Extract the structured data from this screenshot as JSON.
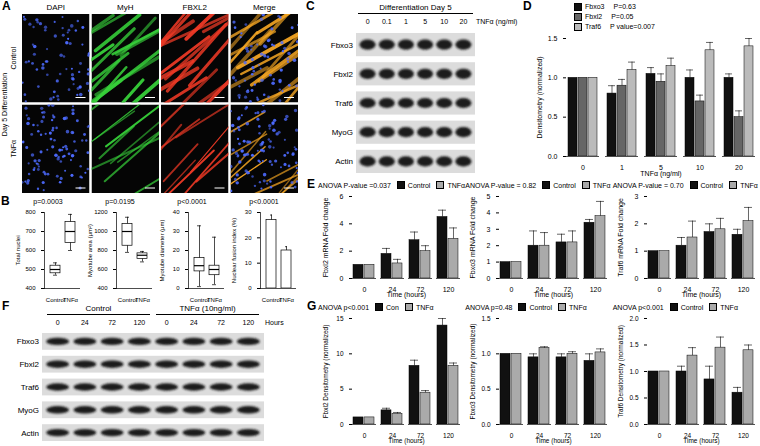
{
  "figure": {
    "microscopy": {
      "panel": "A",
      "columns": [
        {
          "name": "DAPI",
          "color": "#4d6bff"
        },
        {
          "name": "MyH",
          "color": "#37d13a"
        },
        {
          "name": "FBXL2",
          "color": "#f03a26"
        },
        {
          "name": "Merge",
          "color": "#f5a623"
        }
      ],
      "rows": [
        "Control",
        "TNFα"
      ],
      "row_group": "Day 5 Differentiation"
    },
    "blot_dose": {
      "panel": "C",
      "header": "Differentiation Day 5",
      "lane_title": "TNFα (ng/ml)",
      "lanes": [
        "0",
        "0.1",
        "1",
        "5",
        "10",
        "20"
      ],
      "bands": [
        "Fbxo3",
        "Fbxl2",
        "Traf6",
        "MyoG",
        "Actin"
      ]
    },
    "blot_time": {
      "panel": "F",
      "groups": [
        "Control",
        "TNFα (10ng/ml)"
      ],
      "lanes": [
        "0",
        "24",
        "72",
        "120"
      ],
      "lane_title": "Hours",
      "bands": [
        "Fbxo3",
        "Fbxl2",
        "Traf6",
        "MyoG",
        "Actin"
      ]
    }
  },
  "chart_data": [
    {
      "panel": "B",
      "type": "box",
      "y_label": "Total nuclei",
      "categories": [
        "Control",
        "TNFα"
      ],
      "boxes": [
        {
          "min": 470,
          "q1": 480,
          "median": 500,
          "q3": 520,
          "max": 535
        },
        {
          "min": 600,
          "q1": 640,
          "median": 700,
          "q3": 750,
          "max": 790
        }
      ],
      "ylim": [
        400,
        800
      ],
      "yticks": [
        400,
        500,
        600,
        700,
        800
      ],
      "annotation": "p=0.0003"
    },
    {
      "panel": "B",
      "type": "box",
      "y_label": "Myotube area (μm²)",
      "categories": [
        "Control",
        "TNFα"
      ],
      "boxes": [
        {
          "min": 780,
          "q1": 850,
          "median": 1000,
          "q3": 1080,
          "max": 1150
        },
        {
          "min": 680,
          "q1": 710,
          "median": 750,
          "q3": 770,
          "max": 790
        }
      ],
      "ylim": [
        400,
        1200
      ],
      "yticks": [
        400,
        600,
        800,
        1000,
        1200
      ],
      "annotation": "p=0.0195"
    },
    {
      "panel": "B",
      "type": "box",
      "y_label": "Myotube diameter (μm)",
      "categories": [
        "Control",
        "TNFα"
      ],
      "boxes": [
        {
          "min": 1,
          "q1": 9,
          "median": 12,
          "q3": 16,
          "max": 33
        },
        {
          "min": 2,
          "q1": 7,
          "median": 10,
          "q3": 12,
          "max": 27
        }
      ],
      "ylim": [
        0,
        40
      ],
      "yticks": [
        0,
        10,
        20,
        30,
        40
      ],
      "annotation": "p<0.0001"
    },
    {
      "panel": "B",
      "type": "bar",
      "y_label": "Nuclear fusion index (%)",
      "categories": [
        "Control",
        "TNFα"
      ],
      "values": [
        27,
        15
      ],
      "errors": [
        2,
        1.5
      ],
      "color": "#ffffff",
      "ylim": [
        0,
        30
      ],
      "yticks": [
        0,
        10,
        20,
        30
      ],
      "annotation": "p<0.0001"
    },
    {
      "panel": "D",
      "type": "bar",
      "x_label": "TNFα (ng/ml)",
      "y_label": "Densitometry (normalized)",
      "categories": [
        "0",
        "1",
        "5",
        "10",
        "20"
      ],
      "series": [
        {
          "name": "Fbxo3",
          "annotation": "P=0.63",
          "color": "#111111",
          "values": [
            1,
            0.8,
            1.05,
            1.0,
            1.0
          ],
          "errors": [
            null,
            0.1,
            0.08,
            0.1,
            0.05
          ]
        },
        {
          "name": "Fbxl2",
          "annotation": "P=0.05",
          "color": "#666666",
          "values": [
            1,
            0.9,
            0.95,
            0.7,
            0.5
          ],
          "errors": [
            null,
            0.08,
            0.1,
            0.08,
            0.08
          ]
        },
        {
          "name": "Traf6",
          "annotation": "P value=0.007",
          "color": "#bbbbbb",
          "values": [
            1,
            1.1,
            1.15,
            1.35,
            1.4
          ],
          "errors": [
            null,
            0.1,
            0.1,
            0.1,
            0.1
          ]
        }
      ],
      "ylim": [
        0,
        1.5
      ],
      "yticks": [
        {
          "value": 0,
          "label": "0.0"
        },
        0.5,
        {
          "value": 1,
          "label": "1.0"
        },
        1.5
      ],
      "legend": "top"
    },
    {
      "panel": "E",
      "type": "bar",
      "x_label": "Time (hours)",
      "y_label": "Fbxl2 mRNA Fold change",
      "categories": [
        "0",
        "24",
        "72",
        "120"
      ],
      "series": [
        {
          "name": "Control",
          "color": "#111111",
          "values": [
            1,
            1.8,
            2.8,
            4.5
          ],
          "errors": [
            null,
            0.4,
            0.6,
            0.5
          ]
        },
        {
          "name": "TNFα",
          "color": "#aaaaaa",
          "values": [
            1,
            1.1,
            2.0,
            2.9
          ],
          "errors": [
            null,
            0.3,
            0.4,
            0.8
          ]
        }
      ],
      "ylim": [
        0,
        6
      ],
      "yticks": [
        0,
        2,
        4,
        6
      ],
      "legend": "top",
      "annotation": "ANOVA P-value =0.037"
    },
    {
      "panel": "E",
      "type": "bar",
      "x_label": "Time (hours)",
      "y_label": "Fbxo3 mRNA Fold change",
      "categories": [
        "0",
        "24",
        "72",
        "120"
      ],
      "series": [
        {
          "name": "Control",
          "color": "#111111",
          "values": [
            1,
            2.0,
            2.2,
            3.4
          ],
          "errors": [
            null,
            0.9,
            0.5,
            0.2
          ]
        },
        {
          "name": "TNFα",
          "color": "#aaaaaa",
          "values": [
            1,
            2.0,
            2.2,
            3.8
          ],
          "errors": [
            null,
            0.8,
            0.7,
            0.9
          ]
        }
      ],
      "ylim": [
        0,
        5
      ],
      "yticks": [
        0,
        1,
        2,
        3,
        4,
        5
      ],
      "legend": "top",
      "annotation": "ANOVA P-value = 0.82"
    },
    {
      "panel": "E",
      "type": "bar",
      "x_label": "Time (hours)",
      "y_label": "Traf6 mRNA Fold change",
      "categories": [
        "0",
        "24",
        "72",
        "120"
      ],
      "series": [
        {
          "name": "Control",
          "color": "#111111",
          "values": [
            1,
            1.2,
            1.7,
            1.6
          ],
          "errors": [
            null,
            0.3,
            0.3,
            0.2
          ]
        },
        {
          "name": "TNFα",
          "color": "#aaaaaa",
          "values": [
            1,
            1.5,
            1.8,
            2.1
          ],
          "errors": [
            null,
            0.6,
            0.4,
            0.5
          ]
        }
      ],
      "ylim": [
        0,
        3
      ],
      "yticks": [
        0,
        1,
        2,
        3
      ],
      "legend": "top",
      "annotation": "ANOVA P-value = 0.70"
    },
    {
      "panel": "G",
      "type": "bar",
      "x_label": "Time (hours)",
      "y_label": "Fbxl2 Densitometry (normalized)",
      "categories": [
        "0",
        "24",
        "72",
        "120"
      ],
      "series": [
        {
          "name": "Con",
          "color": "#111111",
          "values": [
            1,
            2.0,
            8.3,
            14
          ],
          "errors": [
            null,
            0.3,
            0.8,
            1.0
          ]
        },
        {
          "name": "TNFα",
          "color": "#aaaaaa",
          "values": [
            1,
            1.5,
            4.5,
            8.3
          ],
          "errors": [
            null,
            0.2,
            0.3,
            0.4
          ]
        }
      ],
      "ylim": [
        0,
        15
      ],
      "yticks": [
        0,
        5,
        10,
        15
      ],
      "legend": "top",
      "annotation": "ANOVA p<0.001"
    },
    {
      "panel": "G",
      "type": "bar",
      "x_label": "Time (hours)",
      "y_label": "Fbxo3 Densitometry (normalized)",
      "categories": [
        "0",
        "24",
        "72",
        "120"
      ],
      "series": [
        {
          "name": "Control",
          "color": "#111111",
          "values": [
            1,
            0.95,
            0.95,
            0.9
          ],
          "errors": [
            null,
            0.05,
            0.05,
            0.1
          ]
        },
        {
          "name": "TNFα",
          "color": "#aaaaaa",
          "values": [
            1,
            1.08,
            1.0,
            1.02
          ],
          "errors": [
            null,
            0.02,
            0.03,
            0.05
          ]
        }
      ],
      "ylim": [
        0,
        1.5
      ],
      "yticks": [
        {
          "value": 0,
          "label": "0.0"
        },
        0.5,
        {
          "value": 1,
          "label": "1.0"
        },
        1.5
      ],
      "legend": "top",
      "annotation": "ANOVA p=0.48"
    },
    {
      "panel": "G",
      "type": "bar",
      "x_label": "Time (hours)",
      "y_label": "Traf6 Densitometry (normalized)",
      "categories": [
        "0",
        "24",
        "72",
        "120"
      ],
      "series": [
        {
          "name": "Control",
          "color": "#111111",
          "values": [
            1,
            1.0,
            0.85,
            0.6
          ],
          "errors": [
            null,
            0.1,
            0.25,
            0.1
          ]
        },
        {
          "name": "TNFα",
          "color": "#aaaaaa",
          "values": [
            1,
            1.3,
            1.45,
            1.4
          ],
          "errors": [
            null,
            0.15,
            0.2,
            0.1
          ]
        }
      ],
      "ylim": [
        0,
        2
      ],
      "yticks": [
        {
          "value": 0,
          "label": "0.0"
        },
        0.5,
        {
          "value": 1,
          "label": "1.0"
        },
        1.5,
        {
          "value": 2,
          "label": "2.0"
        }
      ],
      "legend": "top",
      "annotation": "ANOVA p<0.001"
    }
  ]
}
